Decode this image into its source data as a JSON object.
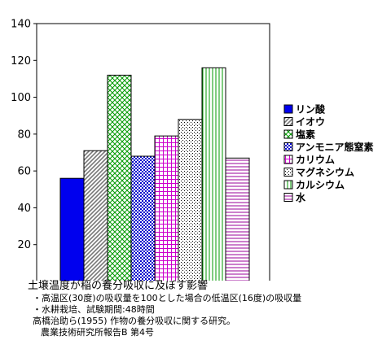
{
  "chart_data": {
    "type": "bar",
    "title": "",
    "xlabel": "",
    "ylabel": "",
    "ylim": [
      0,
      140
    ],
    "yticks": [
      0,
      20,
      40,
      60,
      80,
      100,
      120,
      140
    ],
    "grid": false,
    "legend_position": "right",
    "series": [
      {
        "name": "リン酸",
        "value": 56,
        "color": "#0000ee",
        "pattern": "solid"
      },
      {
        "name": "イオウ",
        "value": 71,
        "color": "#777777",
        "pattern": "diagonal"
      },
      {
        "name": "塩素",
        "value": 112,
        "color": "#009900",
        "pattern": "crosshatch"
      },
      {
        "name": "アンモニア態窒素",
        "value": 68,
        "color": "#0000cc",
        "pattern": "checker"
      },
      {
        "name": "カリウム",
        "value": 79,
        "color": "#cc00cc",
        "pattern": "grid"
      },
      {
        "name": "マグネシウム",
        "value": 88,
        "color": "#000000",
        "pattern": "dots"
      },
      {
        "name": "カルシウム",
        "value": 116,
        "color": "#009900",
        "pattern": "vertical"
      },
      {
        "name": "水",
        "value": 67,
        "color": "#990099",
        "pattern": "horizontal"
      }
    ]
  },
  "caption": {
    "title": "土壌温度が稲の養分吸収に及ぼす影響",
    "line1": "・高温区(30度)の吸収量を100とした場合の低温区(16度)の吸収量",
    "line2": "・水耕栽培、試験期間:48時間",
    "line3": "高橋治助ら(1955) 作物の養分吸収に関する研究。",
    "line4": "農業技術研究所報告B 第4号"
  }
}
